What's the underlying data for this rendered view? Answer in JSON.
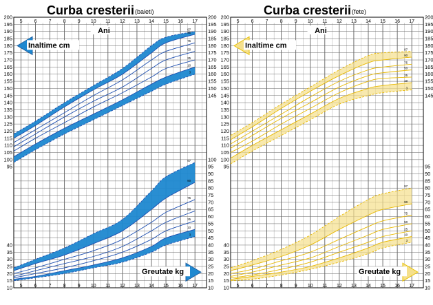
{
  "chart_data": [
    {
      "type": "line",
      "title": "Curba cresterii",
      "subtitle": "(baieti)",
      "x_label": "Ani",
      "x_ticks": [
        5,
        6,
        7,
        8,
        9,
        10,
        11,
        12,
        13,
        14,
        15,
        16,
        17
      ],
      "xlim": [
        4.5,
        17.8
      ],
      "ylim": [
        10,
        200
      ],
      "y_ticks_left": [
        10,
        15,
        20,
        25,
        30,
        35,
        40,
        95,
        100,
        105,
        110,
        115,
        120,
        125,
        130,
        135,
        140,
        145,
        150,
        155,
        160,
        165,
        170,
        175,
        180,
        185,
        190,
        195,
        200
      ],
      "y_ticks_right": [
        10,
        15,
        20,
        25,
        30,
        35,
        40,
        45,
        50,
        55,
        60,
        65,
        70,
        75,
        80,
        85,
        90,
        95,
        100,
        145,
        150,
        155,
        160,
        165,
        170,
        175,
        180,
        185,
        190,
        195,
        200
      ],
      "height_label": "Inaltime cm",
      "weight_label": "Greutate kg",
      "accent_color": "#1e88d0",
      "line_color": "#1e4fb0",
      "height_series": [
        {
          "name": "97",
          "values": [
            [
              4.5,
              118
            ],
            [
              6,
              127
            ],
            [
              8,
              140
            ],
            [
              10,
              152
            ],
            [
              12,
              164
            ],
            [
              14,
              180
            ],
            [
              15,
              186
            ],
            [
              17,
              190
            ]
          ]
        },
        {
          "name": "90",
          "values": [
            [
              4.5,
              115
            ],
            [
              6,
              124
            ],
            [
              8,
              137
            ],
            [
              10,
              149
            ],
            [
              12,
              160
            ],
            [
              14,
              175
            ],
            [
              15,
              182
            ],
            [
              17,
              188
            ]
          ]
        },
        {
          "name": "75",
          "values": [
            [
              4.5,
              112
            ],
            [
              6,
              121
            ],
            [
              8,
              133
            ],
            [
              10,
              145
            ],
            [
              12,
              156
            ],
            [
              14,
              170
            ],
            [
              15,
              176
            ],
            [
              17,
              182
            ]
          ]
        },
        {
          "name": "50",
          "values": [
            [
              4.5,
              109
            ],
            [
              6,
              118
            ],
            [
              8,
              130
            ],
            [
              10,
              141
            ],
            [
              12,
              151
            ],
            [
              14,
              164
            ],
            [
              15,
              170
            ],
            [
              17,
              176
            ]
          ]
        },
        {
          "name": "25",
          "values": [
            [
              4.5,
              106
            ],
            [
              6,
              115
            ],
            [
              8,
              126
            ],
            [
              10,
              137
            ],
            [
              12,
              147
            ],
            [
              14,
              158
            ],
            [
              15,
              164
            ],
            [
              17,
              170
            ]
          ]
        },
        {
          "name": "10",
          "values": [
            [
              4.5,
              102
            ],
            [
              6,
              111
            ],
            [
              8,
              122
            ],
            [
              10,
              132
            ],
            [
              12,
              142
            ],
            [
              14,
              153
            ],
            [
              15,
              158
            ],
            [
              17,
              165
            ]
          ]
        },
        {
          "name": "3",
          "values": [
            [
              4.5,
              98
            ],
            [
              6,
              107
            ],
            [
              8,
              118
            ],
            [
              10,
              128
            ],
            [
              12,
              138
            ],
            [
              14,
              148
            ],
            [
              15,
              153
            ],
            [
              17,
              160
            ]
          ]
        }
      ],
      "weight_series": [
        {
          "name": "97",
          "values": [
            [
              4.5,
              24
            ],
            [
              6,
              30
            ],
            [
              8,
              38
            ],
            [
              10,
              48
            ],
            [
              12,
              58
            ],
            [
              14,
              78
            ],
            [
              15,
              88
            ],
            [
              17,
              98
            ]
          ]
        },
        {
          "name": "90",
          "values": [
            [
              4.5,
              22
            ],
            [
              6,
              27
            ],
            [
              8,
              33
            ],
            [
              10,
              41
            ],
            [
              12,
              50
            ],
            [
              14,
              65
            ],
            [
              15,
              73
            ],
            [
              17,
              84
            ]
          ]
        },
        {
          "name": "75",
          "values": [
            [
              4.5,
              20
            ],
            [
              6,
              24
            ],
            [
              8,
              30
            ],
            [
              10,
              36
            ],
            [
              12,
              44
            ],
            [
              14,
              56
            ],
            [
              15,
              63
            ],
            [
              17,
              72
            ]
          ]
        },
        {
          "name": "50",
          "values": [
            [
              4.5,
              18
            ],
            [
              6,
              22
            ],
            [
              8,
              27
            ],
            [
              10,
              32
            ],
            [
              12,
              39
            ],
            [
              14,
              50
            ],
            [
              15,
              56
            ],
            [
              17,
              64
            ]
          ]
        },
        {
          "name": "25",
          "values": [
            [
              4.5,
              17
            ],
            [
              6,
              20
            ],
            [
              8,
              24
            ],
            [
              10,
              29
            ],
            [
              12,
              35
            ],
            [
              14,
              44
            ],
            [
              15,
              50
            ],
            [
              17,
              57
            ]
          ]
        },
        {
          "name": "10",
          "values": [
            [
              4.5,
              16
            ],
            [
              6,
              18
            ],
            [
              8,
              22
            ],
            [
              10,
              26
            ],
            [
              12,
              31
            ],
            [
              14,
              39
            ],
            [
              15,
              45
            ],
            [
              17,
              51
            ]
          ]
        },
        {
          "name": "3",
          "values": [
            [
              4.5,
              15
            ],
            [
              6,
              17
            ],
            [
              8,
              20
            ],
            [
              10,
              24
            ],
            [
              12,
              28
            ],
            [
              14,
              35
            ],
            [
              15,
              40
            ],
            [
              17,
              46
            ]
          ]
        }
      ]
    },
    {
      "type": "line",
      "title": "Curba cresterii",
      "subtitle": "(fete)",
      "x_label": "Ani",
      "x_ticks": [
        5,
        6,
        7,
        8,
        9,
        10,
        11,
        12,
        13,
        14,
        15,
        16,
        17
      ],
      "xlim": [
        4.5,
        17.8
      ],
      "ylim": [
        10,
        200
      ],
      "y_ticks_left": [
        10,
        15,
        20,
        25,
        30,
        35,
        40,
        95,
        100,
        105,
        110,
        115,
        120,
        125,
        130,
        135,
        140,
        145,
        150,
        155,
        160,
        165,
        170,
        175,
        180,
        185,
        190,
        195,
        200
      ],
      "y_ticks_right": [
        10,
        15,
        20,
        25,
        30,
        35,
        40,
        45,
        50,
        55,
        60,
        65,
        70,
        75,
        80,
        85,
        90,
        95,
        145,
        150,
        155,
        160,
        165,
        170,
        175,
        180,
        185,
        190,
        195,
        200
      ],
      "height_label": "Inaltime cm",
      "weight_label": "Greutate kg",
      "accent_color": "#f5e08c",
      "line_color": "#e8b800",
      "height_series": [
        {
          "name": "97",
          "values": [
            [
              4.5,
              117
            ],
            [
              6,
              126
            ],
            [
              8,
              139
            ],
            [
              10,
              151
            ],
            [
              12,
              163
            ],
            [
              14,
              173
            ],
            [
              15,
              175
            ],
            [
              17,
              176
            ]
          ]
        },
        {
          "name": "90",
          "values": [
            [
              4.5,
              114
            ],
            [
              6,
              123
            ],
            [
              8,
              136
            ],
            [
              10,
              148
            ],
            [
              12,
              159
            ],
            [
              14,
              168
            ],
            [
              15,
              170
            ],
            [
              17,
              172
            ]
          ]
        },
        {
          "name": "75",
          "values": [
            [
              4.5,
              111
            ],
            [
              6,
              120
            ],
            [
              8,
              132
            ],
            [
              10,
              144
            ],
            [
              12,
              155
            ],
            [
              14,
              163
            ],
            [
              15,
              165
            ],
            [
              17,
              167
            ]
          ]
        },
        {
          "name": "50",
          "values": [
            [
              4.5,
              108
            ],
            [
              6,
              117
            ],
            [
              8,
              129
            ],
            [
              10,
              140
            ],
            [
              12,
              151
            ],
            [
              14,
              159
            ],
            [
              15,
              161
            ],
            [
              17,
              163
            ]
          ]
        },
        {
          "name": "25",
          "values": [
            [
              4.5,
              105
            ],
            [
              6,
              113
            ],
            [
              8,
              125
            ],
            [
              10,
              136
            ],
            [
              12,
              147
            ],
            [
              14,
              155
            ],
            [
              15,
              157
            ],
            [
              17,
              158
            ]
          ]
        },
        {
          "name": "10",
          "values": [
            [
              4.5,
              101
            ],
            [
              6,
              110
            ],
            [
              8,
              121
            ],
            [
              10,
              132
            ],
            [
              12,
              143
            ],
            [
              14,
              150
            ],
            [
              15,
              152
            ],
            [
              17,
              154
            ]
          ]
        },
        {
          "name": "3",
          "values": [
            [
              4.5,
              97
            ],
            [
              6,
              106
            ],
            [
              8,
              117
            ],
            [
              10,
              128
            ],
            [
              12,
              139
            ],
            [
              14,
              145
            ],
            [
              15,
              147
            ],
            [
              17,
              149
            ]
          ]
        }
      ],
      "weight_series": [
        {
          "name": "97",
          "values": [
            [
              4.5,
              24
            ],
            [
              6,
              29
            ],
            [
              8,
              37
            ],
            [
              10,
              47
            ],
            [
              12,
              60
            ],
            [
              14,
              72
            ],
            [
              15,
              76
            ],
            [
              17,
              80
            ]
          ]
        },
        {
          "name": "90",
          "values": [
            [
              4.5,
              22
            ],
            [
              6,
              26
            ],
            [
              8,
              32
            ],
            [
              10,
              40
            ],
            [
              12,
              51
            ],
            [
              14,
              61
            ],
            [
              15,
              65
            ],
            [
              17,
              69
            ]
          ]
        },
        {
          "name": "75",
          "values": [
            [
              4.5,
              20
            ],
            [
              6,
              23
            ],
            [
              8,
              29
            ],
            [
              10,
              35
            ],
            [
              12,
              44
            ],
            [
              14,
              53
            ],
            [
              15,
              57
            ],
            [
              17,
              61
            ]
          ]
        },
        {
          "name": "50",
          "values": [
            [
              4.5,
              18
            ],
            [
              6,
              21
            ],
            [
              8,
              26
            ],
            [
              10,
              31
            ],
            [
              12,
              39
            ],
            [
              14,
              47
            ],
            [
              15,
              51
            ],
            [
              17,
              55
            ]
          ]
        },
        {
          "name": "25",
          "values": [
            [
              4.5,
              17
            ],
            [
              6,
              19
            ],
            [
              8,
              23
            ],
            [
              10,
              28
            ],
            [
              12,
              35
            ],
            [
              14,
              42
            ],
            [
              15,
              46
            ],
            [
              17,
              50
            ]
          ]
        },
        {
          "name": "10",
          "values": [
            [
              4.5,
              16
            ],
            [
              6,
              18
            ],
            [
              8,
              21
            ],
            [
              10,
              25
            ],
            [
              12,
              31
            ],
            [
              14,
              38
            ],
            [
              15,
              42
            ],
            [
              17,
              46
            ]
          ]
        },
        {
          "name": "3",
          "values": [
            [
              4.5,
              15
            ],
            [
              6,
              16
            ],
            [
              8,
              19
            ],
            [
              10,
              23
            ],
            [
              12,
              28
            ],
            [
              14,
              34
            ],
            [
              15,
              38
            ],
            [
              17,
              42
            ]
          ]
        }
      ]
    }
  ]
}
